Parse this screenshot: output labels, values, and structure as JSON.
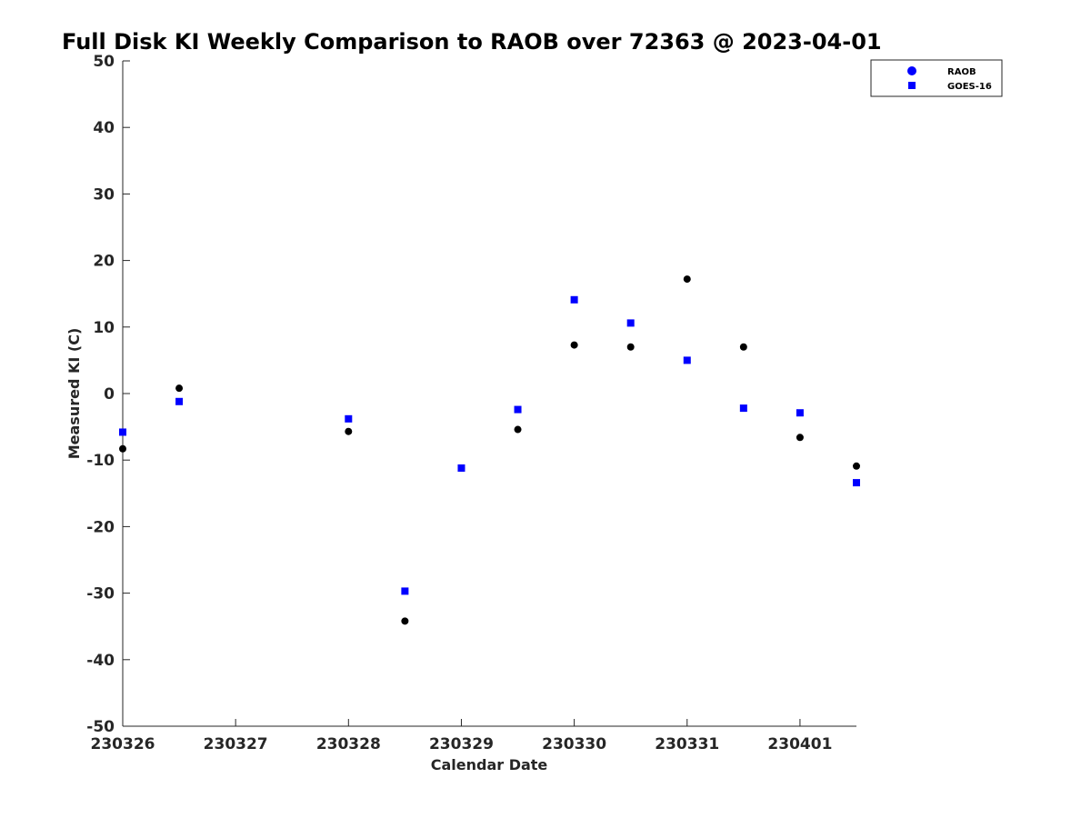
{
  "chart_data": {
    "type": "scatter",
    "title": "Full Disk KI Weekly Comparison to RAOB over 72363 @ 2023-04-01",
    "xlabel": "Calendar Date",
    "ylabel": "Measured KI (C)",
    "xlim": [
      0,
      6.5
    ],
    "ylim": [
      -50,
      50
    ],
    "xticks": [
      0,
      1,
      2,
      3,
      4,
      5,
      6
    ],
    "xtick_labels": [
      "230326",
      "230327",
      "230328",
      "230329",
      "230330",
      "230331",
      "230401"
    ],
    "yticks": [
      -50,
      -40,
      -30,
      -20,
      -10,
      0,
      10,
      20,
      30,
      40,
      50
    ],
    "ytick_labels": [
      "-50",
      "-40",
      "-30",
      "-20",
      "-10",
      "0",
      "10",
      "20",
      "30",
      "40",
      "50"
    ],
    "grid": false,
    "legend_position": "top-right",
    "series": [
      {
        "name": "RAOB",
        "marker": "circle",
        "color": "#000000",
        "legend_color": "#0000ff",
        "x": [
          0,
          0.5,
          2,
          2.5,
          3,
          3.5,
          4,
          4.5,
          5,
          5.5,
          6,
          6.5
        ],
        "y": [
          -8.3,
          0.8,
          -5.7,
          -34.2,
          -11.2,
          -5.4,
          7.3,
          7.0,
          17.2,
          7.0,
          -6.6,
          -10.9
        ]
      },
      {
        "name": "GOES-16",
        "marker": "square",
        "color": "#0000ff",
        "legend_color": "#0000ff",
        "x": [
          0,
          0.5,
          2,
          2.5,
          3,
          3.5,
          4,
          4.5,
          5,
          5.5,
          6,
          6.5
        ],
        "y": [
          -5.8,
          -1.2,
          -3.8,
          -29.7,
          -11.2,
          -2.4,
          14.1,
          10.6,
          5.0,
          -2.2,
          -2.9,
          -13.4
        ]
      }
    ]
  }
}
